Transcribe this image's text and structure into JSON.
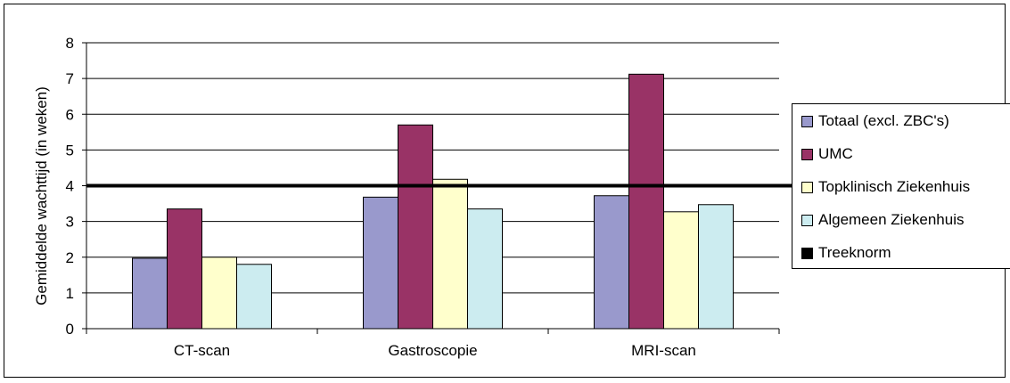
{
  "chart_data": {
    "type": "bar",
    "ylabel": "Gemiddelde wachttijd (in weken)",
    "xlabel": "",
    "ylim": [
      0,
      8
    ],
    "yticks": [
      "0",
      "1",
      "2",
      "3",
      "4",
      "5",
      "6",
      "7",
      "8"
    ],
    "categories": [
      "CT-scan",
      "Gastroscopie",
      "MRI-scan"
    ],
    "series": [
      {
        "name": "Totaal (excl. ZBC's)",
        "color": "#9999CC",
        "values": [
          1.97,
          3.68,
          3.72
        ]
      },
      {
        "name": "UMC",
        "color": "#993366",
        "values": [
          3.35,
          5.7,
          7.12
        ]
      },
      {
        "name": "Topklinisch Ziekenhuis",
        "color": "#FFFFCC",
        "values": [
          2.0,
          4.18,
          3.27
        ]
      },
      {
        "name": "Algemeen Ziekenhuis",
        "color": "#CCECF0",
        "values": [
          1.8,
          3.35,
          3.47
        ]
      }
    ],
    "reference_line": {
      "name": "Treeknorm",
      "value": 4,
      "color": "#000000"
    },
    "grid": true,
    "legend_position": "right"
  }
}
